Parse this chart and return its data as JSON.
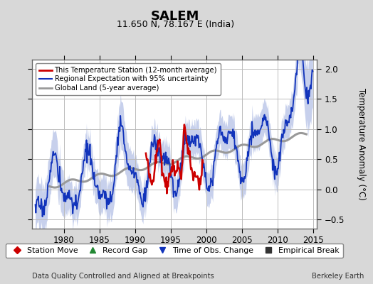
{
  "title": "SALEM",
  "subtitle": "11.650 N, 78.167 E (India)",
  "ylabel": "Temperature Anomaly (°C)",
  "footer_left": "Data Quality Controlled and Aligned at Breakpoints",
  "footer_right": "Berkeley Earth",
  "xlim": [
    1975.5,
    2015.5
  ],
  "ylim": [
    -0.65,
    2.15
  ],
  "yticks": [
    -0.5,
    0.0,
    0.5,
    1.0,
    1.5,
    2.0
  ],
  "xticks": [
    1980,
    1985,
    1990,
    1995,
    2000,
    2005,
    2010,
    2015
  ],
  "bg_color": "#d8d8d8",
  "plot_bg_color": "#ffffff",
  "grid_color": "#bbbbbb",
  "red_color": "#cc0000",
  "blue_color": "#1133bb",
  "blue_fill_color": "#99aadd",
  "gray_color": "#999999",
  "legend_items": [
    {
      "label": "This Temperature Station (12-month average)",
      "color": "#cc0000",
      "lw": 2.0
    },
    {
      "label": "Regional Expectation with 95% uncertainty",
      "color": "#1133bb",
      "lw": 1.5
    },
    {
      "label": "Global Land (5-year average)",
      "color": "#999999",
      "lw": 2.0
    }
  ],
  "marker_legend": [
    {
      "marker": "D",
      "color": "#cc0000",
      "label": "Station Move"
    },
    {
      "marker": "^",
      "color": "#228833",
      "label": "Record Gap"
    },
    {
      "marker": "v",
      "color": "#1133bb",
      "label": "Time of Obs. Change"
    },
    {
      "marker": "s",
      "color": "#333333",
      "label": "Empirical Break"
    }
  ]
}
